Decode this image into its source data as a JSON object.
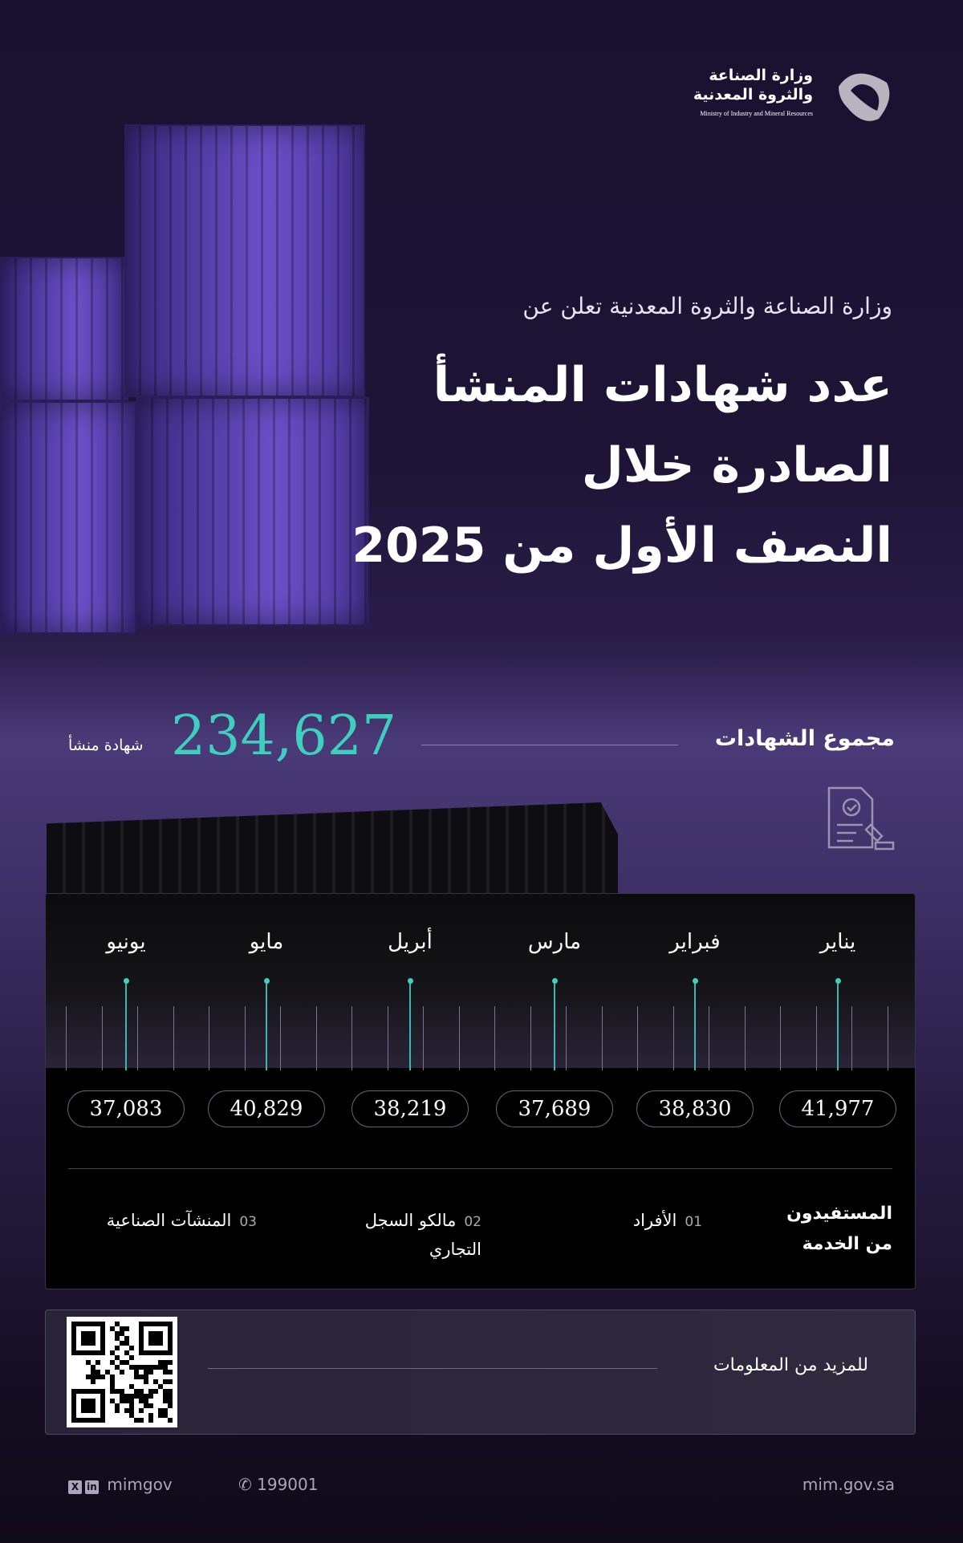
{
  "logo": {
    "ar_line1": "وزارة الصناعة",
    "ar_line2": "والثروة المعدنية",
    "en": "Ministry of Industry and Mineral Resources"
  },
  "header": {
    "intro": "وزارة الصناعة والثروة المعدنية تعلن عن",
    "title_line1": "عدد شهادات المنشأ",
    "title_line2": "الصادرة خلال",
    "title_line3": "النصف الأول من 2025"
  },
  "total": {
    "label": "مجموع الشهادات",
    "value": "234,627",
    "unit": "شهادة منشأ",
    "icon": "certificate-stamp-icon"
  },
  "months": [
    {
      "name": "يناير",
      "value": "41,977"
    },
    {
      "name": "فبراير",
      "value": "38,830"
    },
    {
      "name": "مارس",
      "value": "37,689"
    },
    {
      "name": "أبريل",
      "value": "38,219"
    },
    {
      "name": "مايو",
      "value": "40,829"
    },
    {
      "name": "يونيو",
      "value": "37,083"
    }
  ],
  "beneficiaries": {
    "title_line1": "المستفيدون",
    "title_line2": "من الخدمة",
    "items": [
      {
        "num": "01",
        "label": "الأفراد"
      },
      {
        "num": "02",
        "label": "مالكو السجل التجاري"
      },
      {
        "num": "03",
        "label": "المنشآت الصناعية"
      }
    ]
  },
  "more_info": {
    "label": "للمزيد من المعلومات",
    "icon": "qr-code"
  },
  "footer": {
    "social": "mimgov",
    "phone": "199001",
    "website": "mim.gov.sa",
    "accent": "#3ecfbf"
  }
}
